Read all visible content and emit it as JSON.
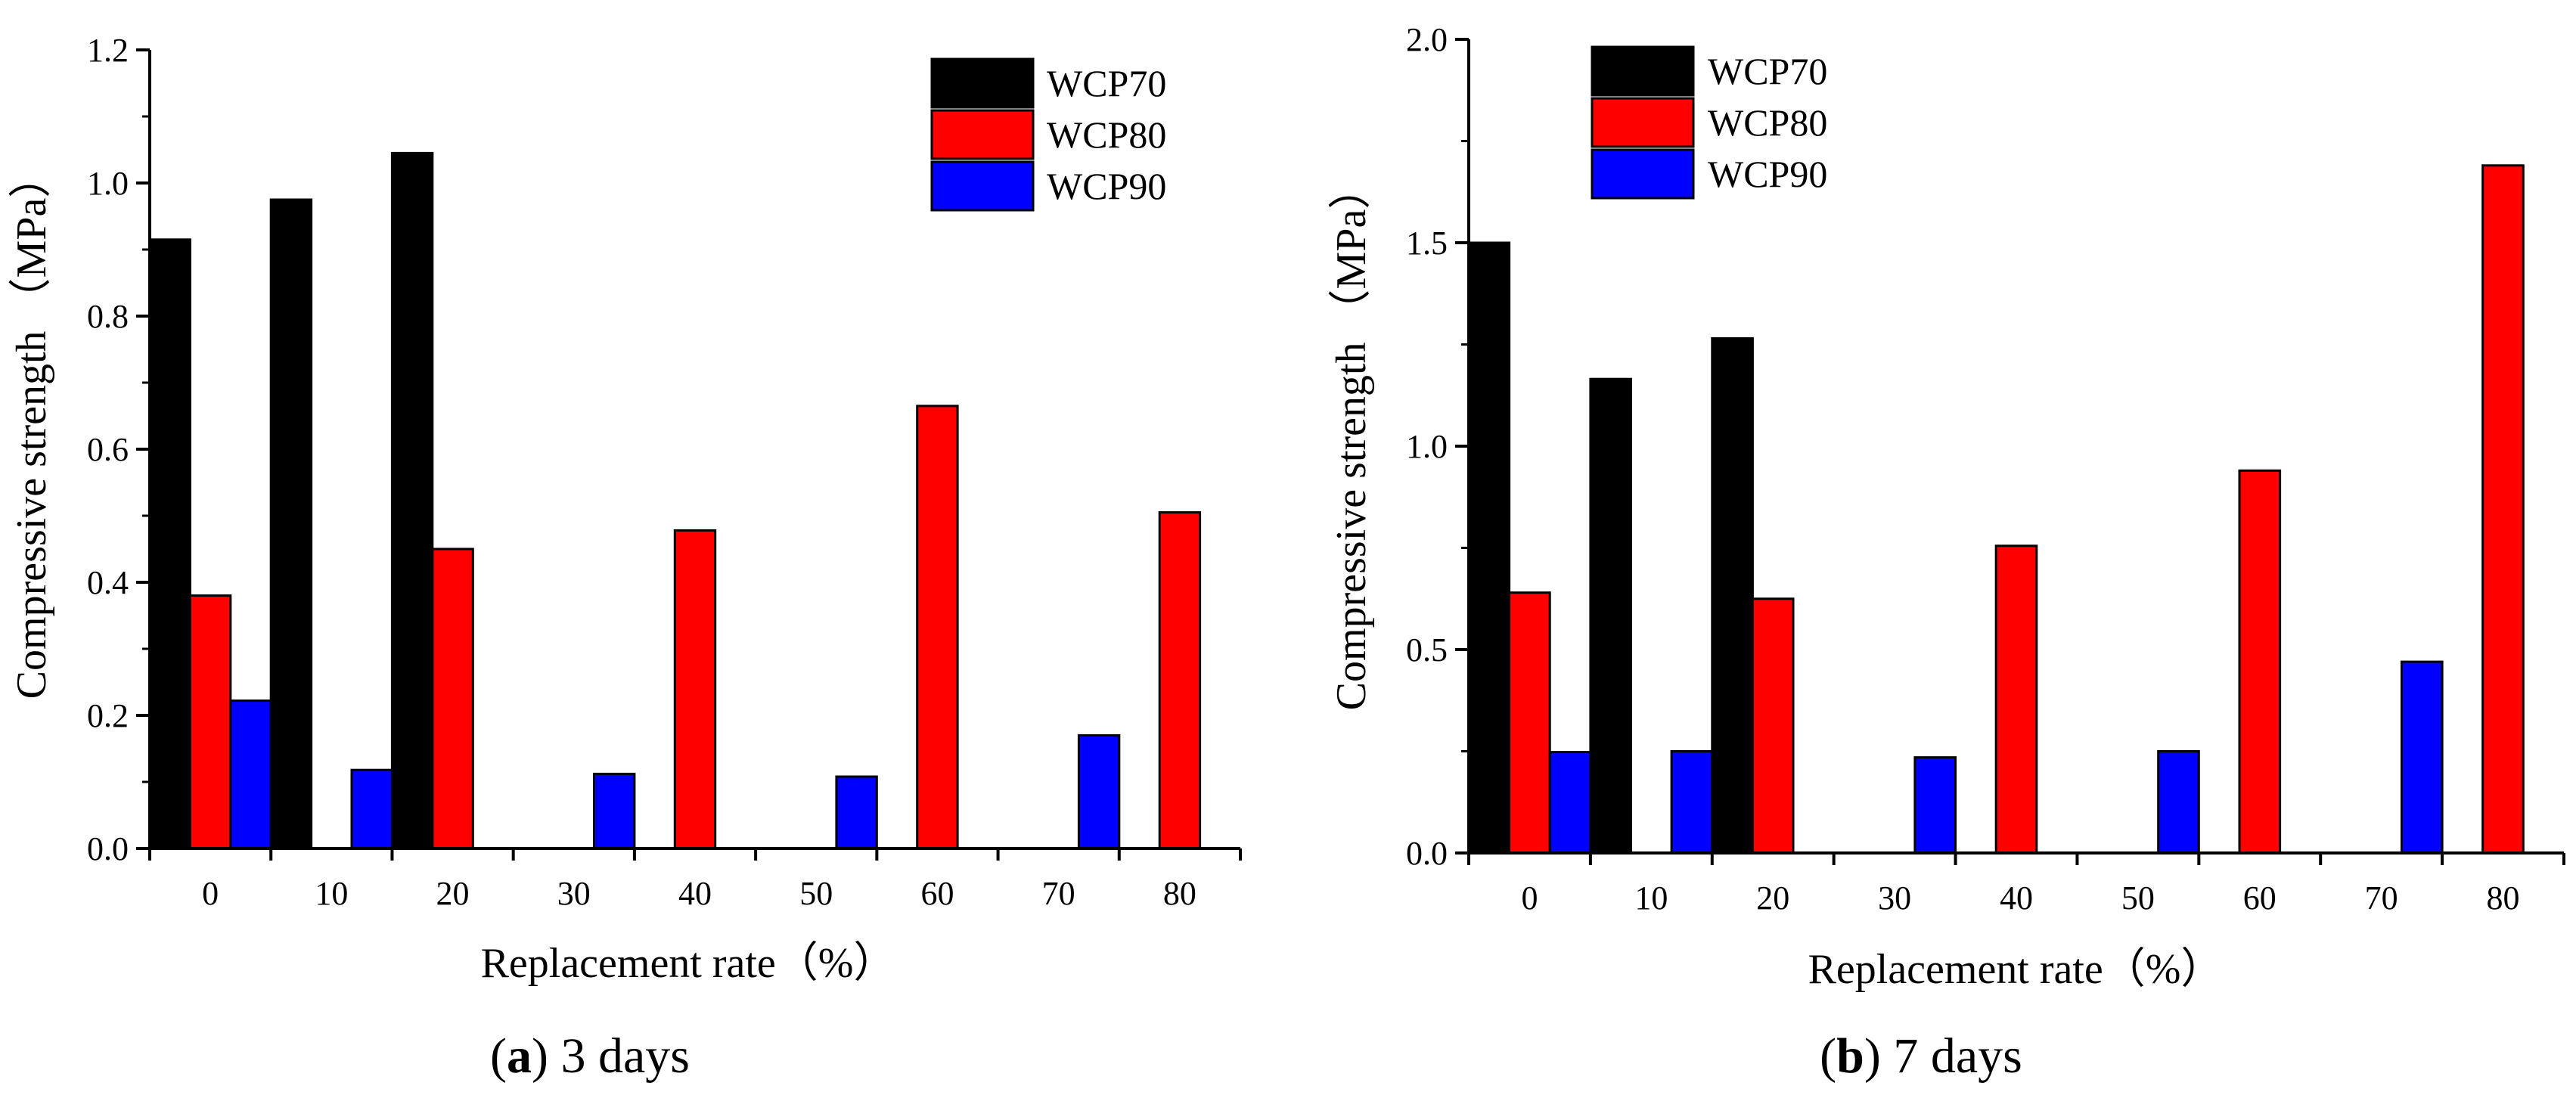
{
  "chart_data": [
    {
      "type": "bar",
      "panel_label": "(a)",
      "caption_text": "3 days",
      "xlabel": "Replacement rate（%）",
      "ylabel": "Compressive strength （MPa）",
      "categories": [
        "0",
        "10",
        "20",
        "30",
        "40",
        "50",
        "60",
        "70",
        "80"
      ],
      "ylim": [
        0,
        1.2
      ],
      "yticks": [
        "0.0",
        "0.2",
        "0.4",
        "0.6",
        "0.8",
        "1.0",
        "1.2"
      ],
      "series": [
        {
          "name": "WCP70",
          "color": "#000000",
          "values": [
            0.915,
            0.975,
            1.045,
            null,
            null,
            null,
            null,
            null,
            null
          ]
        },
        {
          "name": "WCP80",
          "color": "#ff0000",
          "values": [
            0.38,
            null,
            0.45,
            null,
            0.478,
            null,
            0.665,
            null,
            0.505
          ]
        },
        {
          "name": "WCP90",
          "color": "#0000ff",
          "values": [
            0.222,
            0.118,
            null,
            0.112,
            null,
            0.108,
            null,
            0.17,
            null
          ]
        }
      ]
    },
    {
      "type": "bar",
      "panel_label": "(b)",
      "caption_text": "7 days",
      "xlabel": "Replacement rate（%）",
      "ylabel": "Compressive strength （MPa）",
      "categories": [
        "0",
        "10",
        "20",
        "30",
        "40",
        "50",
        "60",
        "70",
        "80"
      ],
      "ylim": [
        0,
        2.0
      ],
      "yticks": [
        "0.0",
        "0.5",
        "1.0",
        "1.5",
        "2.0"
      ],
      "series": [
        {
          "name": "WCP70",
          "color": "#000000",
          "values": [
            1.5,
            1.165,
            1.265,
            null,
            null,
            null,
            null,
            null,
            null
          ]
        },
        {
          "name": "WCP80",
          "color": "#ff0000",
          "values": [
            0.64,
            null,
            0.625,
            null,
            0.755,
            null,
            0.94,
            null,
            1.69
          ]
        },
        {
          "name": "WCP90",
          "color": "#0000ff",
          "values": [
            0.248,
            0.25,
            null,
            0.235,
            null,
            0.25,
            null,
            0.47,
            null
          ]
        }
      ]
    }
  ]
}
